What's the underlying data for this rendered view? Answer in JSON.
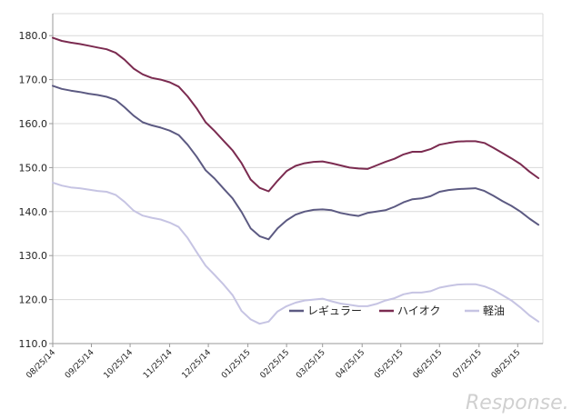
{
  "chart_data": {
    "type": "line",
    "title": "",
    "xlabel": "",
    "ylabel": "",
    "ylim": [
      110,
      185
    ],
    "yticks": [
      110,
      120,
      130,
      140,
      150,
      160,
      170,
      180
    ],
    "ytick_labels": [
      "110.0",
      "120.0",
      "130.0",
      "140.0",
      "150.0",
      "160.0",
      "170.0",
      "180.0"
    ],
    "xticks": [
      {
        "x": 0,
        "label": "08/25/14"
      },
      {
        "x": 4.3,
        "label": "09/25/14"
      },
      {
        "x": 8.6,
        "label": "10/25/14"
      },
      {
        "x": 13,
        "label": "11/25/14"
      },
      {
        "x": 17.3,
        "label": "12/25/14"
      },
      {
        "x": 21.7,
        "label": "01/25/15"
      },
      {
        "x": 26,
        "label": "02/25/15"
      },
      {
        "x": 30,
        "label": "03/25/15"
      },
      {
        "x": 34.4,
        "label": "04/25/15"
      },
      {
        "x": 38.7,
        "label": "05/25/15"
      },
      {
        "x": 43,
        "label": "06/25/15"
      },
      {
        "x": 47.4,
        "label": "07/25/15"
      },
      {
        "x": 51.7,
        "label": "08/25/15"
      }
    ],
    "x": [
      0,
      1,
      2,
      3,
      4,
      5,
      6,
      7,
      8,
      9,
      10,
      11,
      12,
      13,
      14,
      15,
      16,
      17,
      18,
      19,
      20,
      21,
      22,
      23,
      24,
      25,
      26,
      27,
      28,
      29,
      30,
      31,
      32,
      33,
      34,
      35,
      36,
      37,
      38,
      39,
      40,
      41,
      42,
      43,
      44,
      45,
      46,
      47,
      48,
      49,
      50,
      51,
      52,
      53,
      54
    ],
    "grid": true,
    "legend_position": "bottom-right",
    "series": [
      {
        "name": "レギュラー",
        "color": "#5c5a82",
        "values": [
          168.6,
          167.9,
          167.5,
          167.2,
          166.8,
          166.5,
          166.1,
          165.4,
          163.7,
          161.8,
          160.3,
          159.6,
          159.1,
          158.4,
          157.4,
          155.2,
          152.5,
          149.4,
          147.5,
          145.2,
          143.0,
          139.9,
          136.2,
          134.4,
          133.7,
          136.2,
          138.0,
          139.3,
          140.0,
          140.4,
          140.5,
          140.3,
          139.7,
          139.3,
          139.0,
          139.7,
          140.0,
          140.3,
          141.1,
          142.1,
          142.8,
          143.0,
          143.5,
          144.5,
          144.9,
          145.1,
          145.2,
          145.3,
          144.7,
          143.6,
          142.4,
          141.3,
          140.0,
          138.4,
          137.0
        ]
      },
      {
        "name": "ハイオク",
        "color": "#7b2b50",
        "values": [
          179.5,
          178.8,
          178.4,
          178.1,
          177.7,
          177.3,
          176.9,
          176.1,
          174.5,
          172.5,
          171.2,
          170.4,
          170.0,
          169.4,
          168.4,
          166.2,
          163.5,
          160.3,
          158.3,
          156.1,
          153.9,
          151.0,
          147.3,
          145.4,
          144.6,
          147.0,
          149.2,
          150.4,
          151.0,
          151.3,
          151.4,
          151.0,
          150.5,
          150.0,
          149.8,
          149.7,
          150.5,
          151.3,
          152.0,
          153.0,
          153.6,
          153.6,
          154.2,
          155.2,
          155.6,
          155.9,
          156.0,
          156.0,
          155.6,
          154.5,
          153.3,
          152.1,
          150.8,
          149.1,
          147.6
        ]
      },
      {
        "name": "軽油",
        "color": "#c6c4e3",
        "values": [
          146.6,
          145.9,
          145.5,
          145.3,
          145.0,
          144.7,
          144.5,
          143.8,
          142.2,
          140.2,
          139.1,
          138.6,
          138.2,
          137.5,
          136.5,
          134.0,
          130.8,
          127.7,
          125.6,
          123.4,
          121.0,
          117.4,
          115.5,
          114.5,
          115.0,
          117.3,
          118.5,
          119.3,
          119.8,
          120.0,
          120.2,
          119.6,
          119.1,
          118.8,
          118.5,
          118.5,
          119.0,
          119.8,
          120.3,
          121.2,
          121.6,
          121.6,
          121.9,
          122.7,
          123.1,
          123.4,
          123.5,
          123.5,
          123.0,
          122.2,
          121.0,
          119.8,
          118.2,
          116.4,
          115.0
        ]
      }
    ]
  },
  "watermark": {
    "logo_text": "Response."
  }
}
